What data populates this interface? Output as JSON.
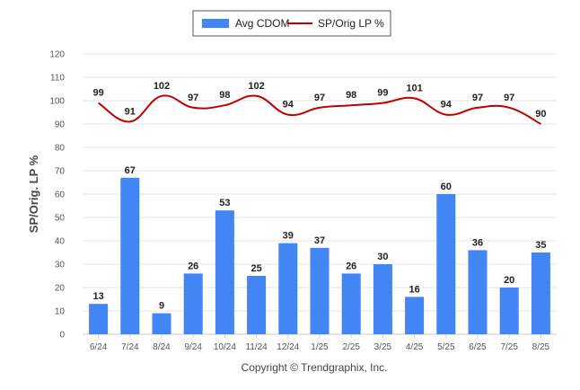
{
  "chart_data": {
    "type": "bar",
    "categories": [
      "6/24",
      "7/24",
      "8/24",
      "9/24",
      "10/24",
      "11/24",
      "12/24",
      "1/25",
      "2/25",
      "3/25",
      "4/25",
      "5/25",
      "6/25",
      "7/25",
      "8/25"
    ],
    "series": [
      {
        "name": "Avg CDOM",
        "type": "bar",
        "color": "#4285f4",
        "values": [
          13,
          67,
          9,
          26,
          53,
          25,
          39,
          37,
          26,
          30,
          16,
          60,
          36,
          20,
          35
        ]
      },
      {
        "name": "SP/Orig LP %",
        "type": "line",
        "color": "#c00000",
        "values": [
          99,
          91,
          102,
          97,
          98,
          102,
          94,
          97,
          98,
          99,
          101,
          94,
          97,
          97,
          90
        ]
      }
    ],
    "ylabel": "SP/Orig. LP %",
    "xlabel": "",
    "ylim": [
      0,
      120
    ],
    "yticks": [
      0,
      10,
      20,
      30,
      40,
      50,
      60,
      70,
      80,
      90,
      100,
      110,
      120
    ],
    "grid": true,
    "legend": "top-center"
  },
  "footer": "Copyright © Trendgraphix, Inc."
}
